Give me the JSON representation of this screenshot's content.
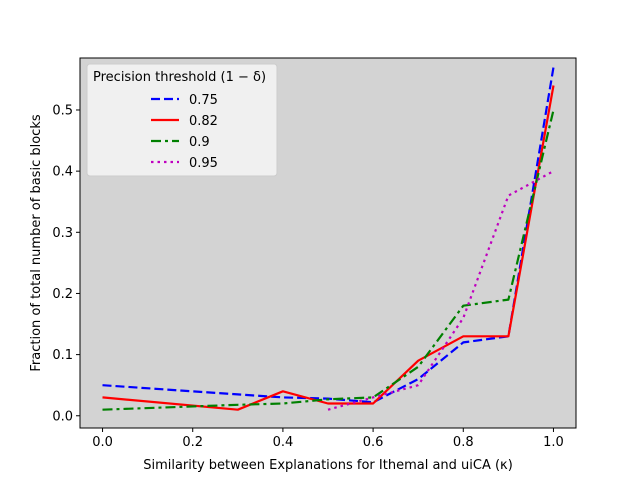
{
  "chart_data": {
    "type": "line",
    "xlabel": "Similarity between Explanations for Ithemal and uiCA (κ)",
    "ylabel": "Fraction of total number of basic blocks",
    "xlim": [
      -0.05,
      1.05
    ],
    "ylim": [
      -0.02,
      0.585
    ],
    "xticks": [
      0.0,
      0.2,
      0.4,
      0.6,
      0.8,
      1.0
    ],
    "xtick_labels": [
      "0.0",
      "0.2",
      "0.4",
      "0.6",
      "0.8",
      "1.0"
    ],
    "yticks": [
      0.0,
      0.1,
      0.2,
      0.3,
      0.4,
      0.5
    ],
    "ytick_labels": [
      "0.0",
      "0.1",
      "0.2",
      "0.3",
      "0.4",
      "0.5"
    ],
    "grid": false,
    "background": "#d3d3d3",
    "legend": {
      "title": "Precision threshold (1 − δ)",
      "placement": "upper-left"
    },
    "series": [
      {
        "name": "0.75",
        "color": "#0000ff",
        "style": "dashed",
        "x": [
          0.0,
          0.3,
          0.4,
          0.5,
          0.6,
          0.7,
          0.8,
          0.9,
          1.0
        ],
        "y": [
          0.05,
          0.035,
          0.03,
          0.028,
          0.022,
          0.06,
          0.12,
          0.13,
          0.57
        ]
      },
      {
        "name": "0.82",
        "color": "#ff0000",
        "style": "solid",
        "x": [
          0.0,
          0.3,
          0.4,
          0.5,
          0.6,
          0.7,
          0.8,
          0.9,
          1.0
        ],
        "y": [
          0.03,
          0.01,
          0.04,
          0.02,
          0.02,
          0.09,
          0.13,
          0.13,
          0.54
        ]
      },
      {
        "name": "0.9",
        "color": "#008000",
        "style": "dashdot",
        "x": [
          0.0,
          0.3,
          0.4,
          0.5,
          0.6,
          0.7,
          0.8,
          0.9,
          1.0
        ],
        "y": [
          0.01,
          0.018,
          0.02,
          0.027,
          0.03,
          0.08,
          0.18,
          0.19,
          0.5
        ]
      },
      {
        "name": "0.95",
        "color": "#bf00bf",
        "style": "dotted",
        "x": [
          0.5,
          0.6,
          0.7,
          0.8,
          0.9,
          1.0
        ],
        "y": [
          0.01,
          0.03,
          0.05,
          0.16,
          0.36,
          0.4
        ]
      }
    ]
  }
}
